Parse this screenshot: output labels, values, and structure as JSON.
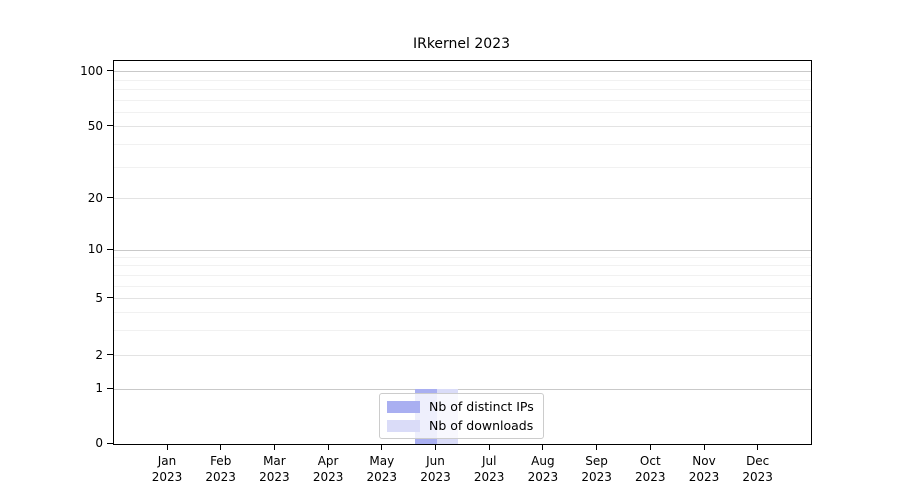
{
  "title": "IRkernel 2023",
  "chart_data": {
    "type": "bar",
    "title": "IRkernel 2023",
    "categories": [
      "Jan 2023",
      "Feb 2023",
      "Mar 2023",
      "Apr 2023",
      "May 2023",
      "Jun 2023",
      "Jul 2023",
      "Aug 2023",
      "Sep 2023",
      "Oct 2023",
      "Nov 2023",
      "Dec 2023"
    ],
    "series": [
      {
        "name": "Nb of distinct IPs",
        "color": "#a9aff1",
        "values": [
          0,
          0,
          0,
          0,
          0,
          1,
          0,
          0,
          0,
          0,
          0,
          0
        ]
      },
      {
        "name": "Nb of downloads",
        "color": "#dadcf8",
        "values": [
          0,
          0,
          0,
          0,
          0,
          1,
          0,
          0,
          0,
          0,
          0,
          0
        ]
      }
    ],
    "xlabel": "",
    "ylabel": "",
    "yscale": "symlog",
    "ylim": [
      0,
      112
    ],
    "ytick_values": [
      0,
      1,
      2,
      5,
      10,
      20,
      50,
      100
    ],
    "ytick_labels": [
      "0",
      "1",
      "2",
      "5",
      "10",
      "20",
      "50",
      "100"
    ],
    "y_major_values": [
      1,
      10,
      100
    ],
    "y_minor_gridline_values": [
      3,
      4,
      6,
      7,
      8,
      9,
      30,
      40,
      60,
      70,
      80,
      90
    ],
    "grid": "horizontal only",
    "legend_position": "bottom center, inside plot"
  },
  "colors": {
    "background": "#ffffff",
    "spine": "#000000",
    "major_grid": "#c9c9c9",
    "labeled_grid": "#e3e3e3",
    "minor_grid": "#f1f1f1",
    "bar_distinct_ips": "#a9aff1",
    "bar_downloads": "#dadcf8",
    "legend_border": "#cccccc"
  }
}
